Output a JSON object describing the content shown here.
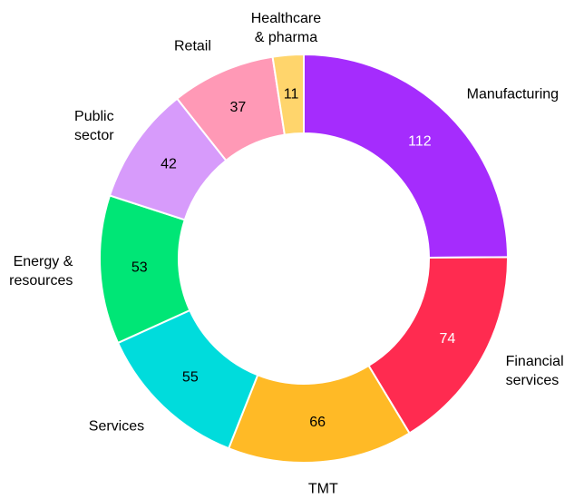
{
  "chart_data": {
    "type": "donut",
    "categories": [
      "Manufacturing",
      "Financial\nservices",
      "TMT",
      "Services",
      "Energy &\nresources",
      "Public\nsector",
      "Retail",
      "Healthcare\n& pharma"
    ],
    "values": [
      112,
      74,
      66,
      55,
      53,
      42,
      37,
      11
    ],
    "colors": [
      "#a52cfd",
      "#ff2b50",
      "#ffba26",
      "#00dcdc",
      "#00e676",
      "#d79bfb",
      "#ff99b6",
      "#ffd56c"
    ],
    "value_label_colors": [
      "#ffffff",
      "#ffffff",
      "#000000",
      "#000000",
      "#000000",
      "#000000",
      "#000000",
      "#000000"
    ]
  }
}
